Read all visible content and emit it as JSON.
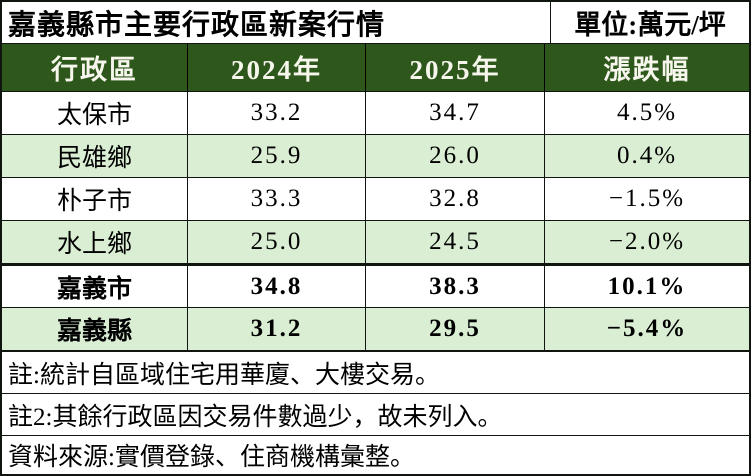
{
  "colors": {
    "header-bg": "#2e571b",
    "header-text": "#f6f6ec",
    "row-shade": "#d9eed2",
    "border": "#101510"
  },
  "chart_data": {
    "type": "table",
    "title": "嘉義縣市主要行政區新案行情",
    "unit_label": "單位:萬元/坪",
    "columns": [
      "行政區",
      "2024年",
      "2025年",
      "漲跌幅"
    ],
    "rows": [
      {
        "district": "太保市",
        "y2024": "33.2",
        "y2025": "34.7",
        "change": "4.5%"
      },
      {
        "district": "民雄鄉",
        "y2024": "25.9",
        "y2025": "26.0",
        "change": "0.4%"
      },
      {
        "district": "朴子市",
        "y2024": "33.3",
        "y2025": "32.8",
        "change": "−1.5%"
      },
      {
        "district": "水上鄉",
        "y2024": "25.0",
        "y2025": "24.5",
        "change": "−2.0%"
      },
      {
        "district": "嘉義市",
        "y2024": "34.8",
        "y2025": "38.3",
        "change": "10.1%"
      },
      {
        "district": "嘉義縣",
        "y2024": "31.2",
        "y2025": "29.5",
        "change": "−5.4%"
      }
    ],
    "notes": [
      "註:統計自區域住宅用華廈、大樓交易。",
      "註2:其餘行政區因交易件數過少，故未列入。",
      "資料來源:實價登錄、住商機構彙整。"
    ]
  }
}
